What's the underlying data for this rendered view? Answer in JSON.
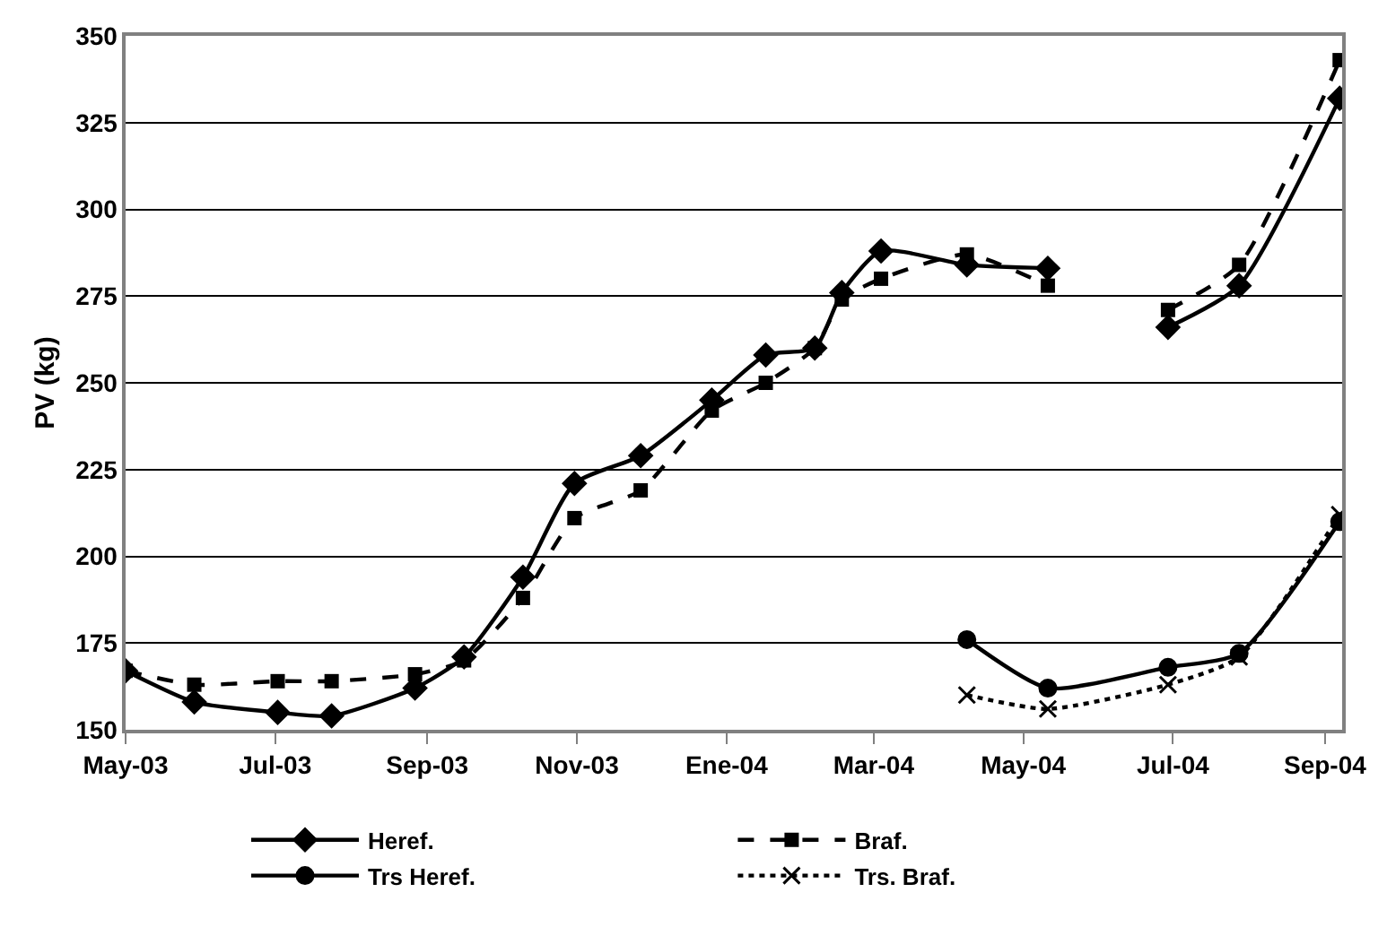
{
  "chart_data": {
    "type": "line",
    "ylabel": "PV (kg)",
    "xlim": [
      "2003-05-01",
      "2004-09-08"
    ],
    "xticks": [
      {
        "value": "2003-05-01",
        "label": "May-03"
      },
      {
        "value": "2003-07-01",
        "label": "Jul-03"
      },
      {
        "value": "2003-09-01",
        "label": "Sep-03"
      },
      {
        "value": "2003-11-01",
        "label": "Nov-03"
      },
      {
        "value": "2004-01-01",
        "label": "Ene-04"
      },
      {
        "value": "2004-03-01",
        "label": "Mar-04"
      },
      {
        "value": "2004-05-01",
        "label": "May-04"
      },
      {
        "value": "2004-07-01",
        "label": "Jul-04"
      },
      {
        "value": "2004-09-01",
        "label": "Sep-04"
      }
    ],
    "ylim": [
      150,
      350
    ],
    "yticks": [
      150,
      175,
      200,
      225,
      250,
      275,
      300,
      325,
      350
    ],
    "grid": "y",
    "legend": "bottom",
    "series": [
      {
        "name": "Heref.",
        "color": "#000000",
        "marker": "diamond",
        "line_style": "solid",
        "x": [
          "2003-05-01",
          "2003-05-29",
          "2003-07-02",
          "2003-07-24",
          "2003-08-27",
          "2003-09-16",
          "2003-10-10",
          "2003-10-31",
          "2003-11-27",
          "2003-12-26",
          "2004-01-17",
          "2004-02-06",
          "2004-02-17",
          "2004-03-04",
          "2004-04-08",
          "2004-05-11",
          "2004-06-01",
          "2004-06-29",
          "2004-07-28",
          "2004-09-07"
        ],
        "values": [
          167,
          158,
          155,
          154,
          162,
          171,
          194,
          221,
          229,
          245,
          258,
          260,
          276,
          288,
          284,
          283,
          null,
          266,
          278,
          332
        ]
      },
      {
        "name": "Braf.",
        "color": "#000000",
        "marker": "square",
        "line_style": "dashed",
        "x": [
          "2003-05-01",
          "2003-05-29",
          "2003-07-02",
          "2003-07-24",
          "2003-08-27",
          "2003-09-16",
          "2003-10-10",
          "2003-10-31",
          "2003-11-27",
          "2003-12-26",
          "2004-01-17",
          "2004-02-06",
          "2004-02-17",
          "2004-03-04",
          "2004-04-08",
          "2004-05-11",
          "2004-06-01",
          "2004-06-29",
          "2004-07-28",
          "2004-09-07"
        ],
        "values": [
          167,
          163,
          164,
          164,
          166,
          170,
          188,
          211,
          219,
          242,
          250,
          260,
          274,
          280,
          287,
          278,
          null,
          271,
          284,
          343
        ]
      },
      {
        "name": "Trs Heref.",
        "color": "#000000",
        "marker": "circle",
        "line_style": "solid",
        "x": [
          "2004-04-08",
          "2004-05-11",
          "2004-06-29",
          "2004-07-28",
          "2004-09-07"
        ],
        "values": [
          176,
          162,
          168,
          172,
          210
        ]
      },
      {
        "name": "Trs. Braf.",
        "color": "#000000",
        "marker": "cross",
        "line_style": "dotted",
        "x": [
          "2004-04-08",
          "2004-05-11",
          "2004-06-29",
          "2004-07-28",
          "2004-09-07"
        ],
        "values": [
          160,
          156,
          163,
          171,
          212
        ]
      }
    ]
  }
}
